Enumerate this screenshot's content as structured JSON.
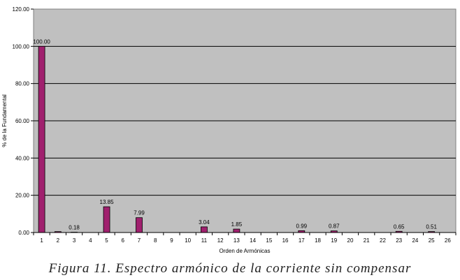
{
  "caption": "Figura 11. Espectro armónico de la corriente sin compensar",
  "chart_data": {
    "type": "bar",
    "title": "",
    "xlabel": "Orden de Armónicas",
    "ylabel": "% de la Fundamental",
    "ylim": [
      0,
      120
    ],
    "yticks": [
      "0.00",
      "20.00",
      "40.00",
      "60.00",
      "80.00",
      "100.00",
      "120.00"
    ],
    "grid": true,
    "plot_background": "#c0c0c0",
    "bar_color": "#a0206e",
    "categories": [
      "1",
      "2",
      "3",
      "4",
      "5",
      "6",
      "7",
      "8",
      "9",
      "10",
      "11",
      "12",
      "13",
      "14",
      "15",
      "16",
      "17",
      "18",
      "19",
      "20",
      "21",
      "22",
      "23",
      "24",
      "25",
      "26"
    ],
    "values": [
      100.0,
      0.5,
      0.18,
      0,
      13.85,
      0,
      7.99,
      0,
      0,
      0,
      3.04,
      0,
      1.85,
      0,
      0,
      0,
      0.99,
      0,
      0.87,
      0,
      0,
      0,
      0.65,
      0,
      0.51,
      0
    ],
    "data_labels": [
      "100.00",
      null,
      "0.18",
      null,
      "13.85",
      null,
      "7.99",
      null,
      null,
      null,
      "3.04",
      null,
      "1.85",
      null,
      null,
      null,
      "0.99",
      null,
      "0.87",
      null,
      null,
      null,
      "0.65",
      null,
      "0.51",
      null
    ]
  }
}
